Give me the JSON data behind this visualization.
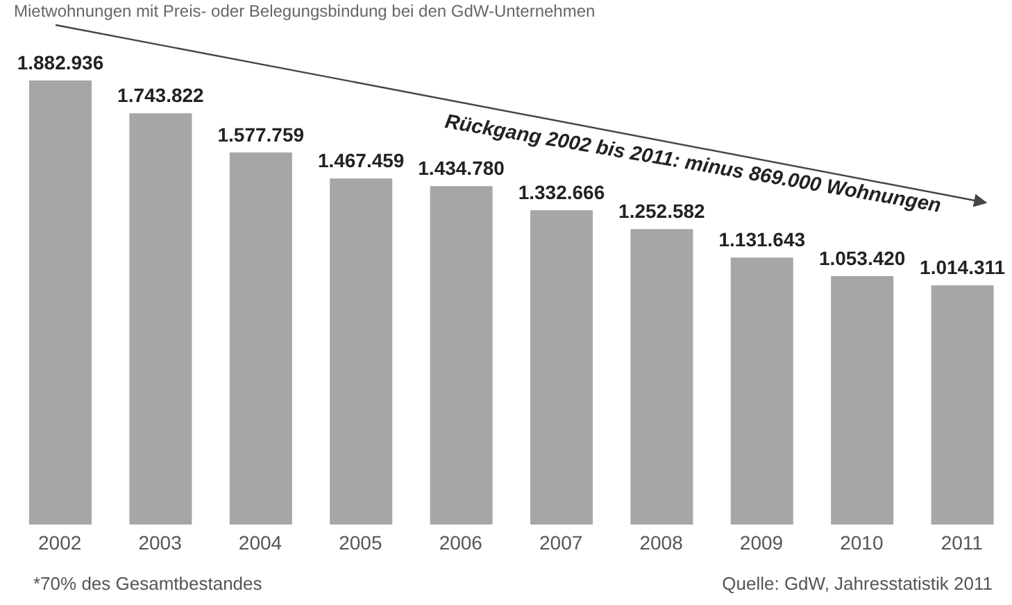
{
  "chart_data": {
    "type": "bar",
    "subtitle": "Mietwohnungen mit Preis- oder Belegungsbindung bei den GdW-Unternehmen",
    "categories": [
      "2002",
      "2003",
      "2004",
      "2005",
      "2006",
      "2007",
      "2008",
      "2009",
      "2010",
      "2011"
    ],
    "values": [
      1882936,
      1743822,
      1577759,
      1467459,
      1434780,
      1332666,
      1252582,
      1131643,
      1053420,
      1014311
    ],
    "value_labels": [
      "1.882.936",
      "1.743.822",
      "1.577.759",
      "1.467.459",
      "1.434.780",
      "1.332.666",
      "1.252.582",
      "1.131.643",
      "1.053.420",
      "1.014.311"
    ],
    "color": "#a6a6a6",
    "grid": false,
    "legend": false,
    "tick_labels": "x",
    "annotations": [
      "Rückgang 2002 bis 2011: minus 869.000 Wohnungen",
      "*70% des Gesamtbestandes",
      "Quelle: GdW, Jahresstatistik 2011"
    ]
  }
}
